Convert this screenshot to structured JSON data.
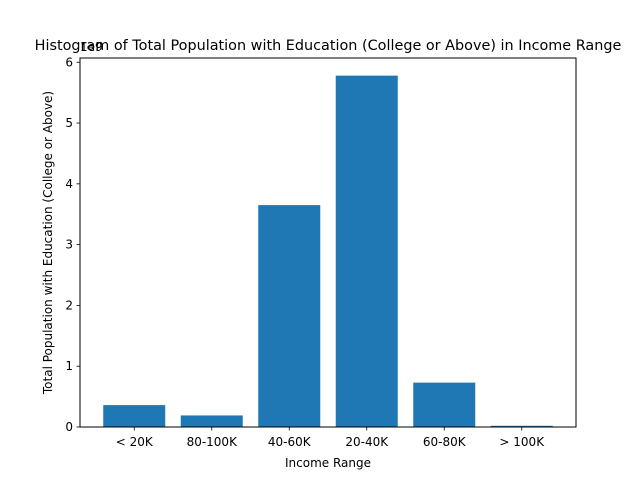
{
  "chart_data": {
    "type": "bar",
    "title": "Histogram of Total Population with Education (College or Above) in Income Range",
    "xlabel": "Income Range",
    "ylabel": "Total Population with Education (College or Above)",
    "offset_label": "1e9",
    "categories": [
      "< 20K",
      "80-100K",
      "40-60K",
      "20-40K",
      "60-80K",
      "> 100K"
    ],
    "values": [
      0.36,
      0.19,
      3.65,
      5.78,
      0.73,
      0.02
    ],
    "value_scale": 1000000000,
    "yticks": [
      0,
      1,
      2,
      3,
      4,
      5,
      6
    ],
    "ylim": [
      0,
      6.07
    ],
    "grid": false,
    "bar_color": "#1f77b4"
  }
}
